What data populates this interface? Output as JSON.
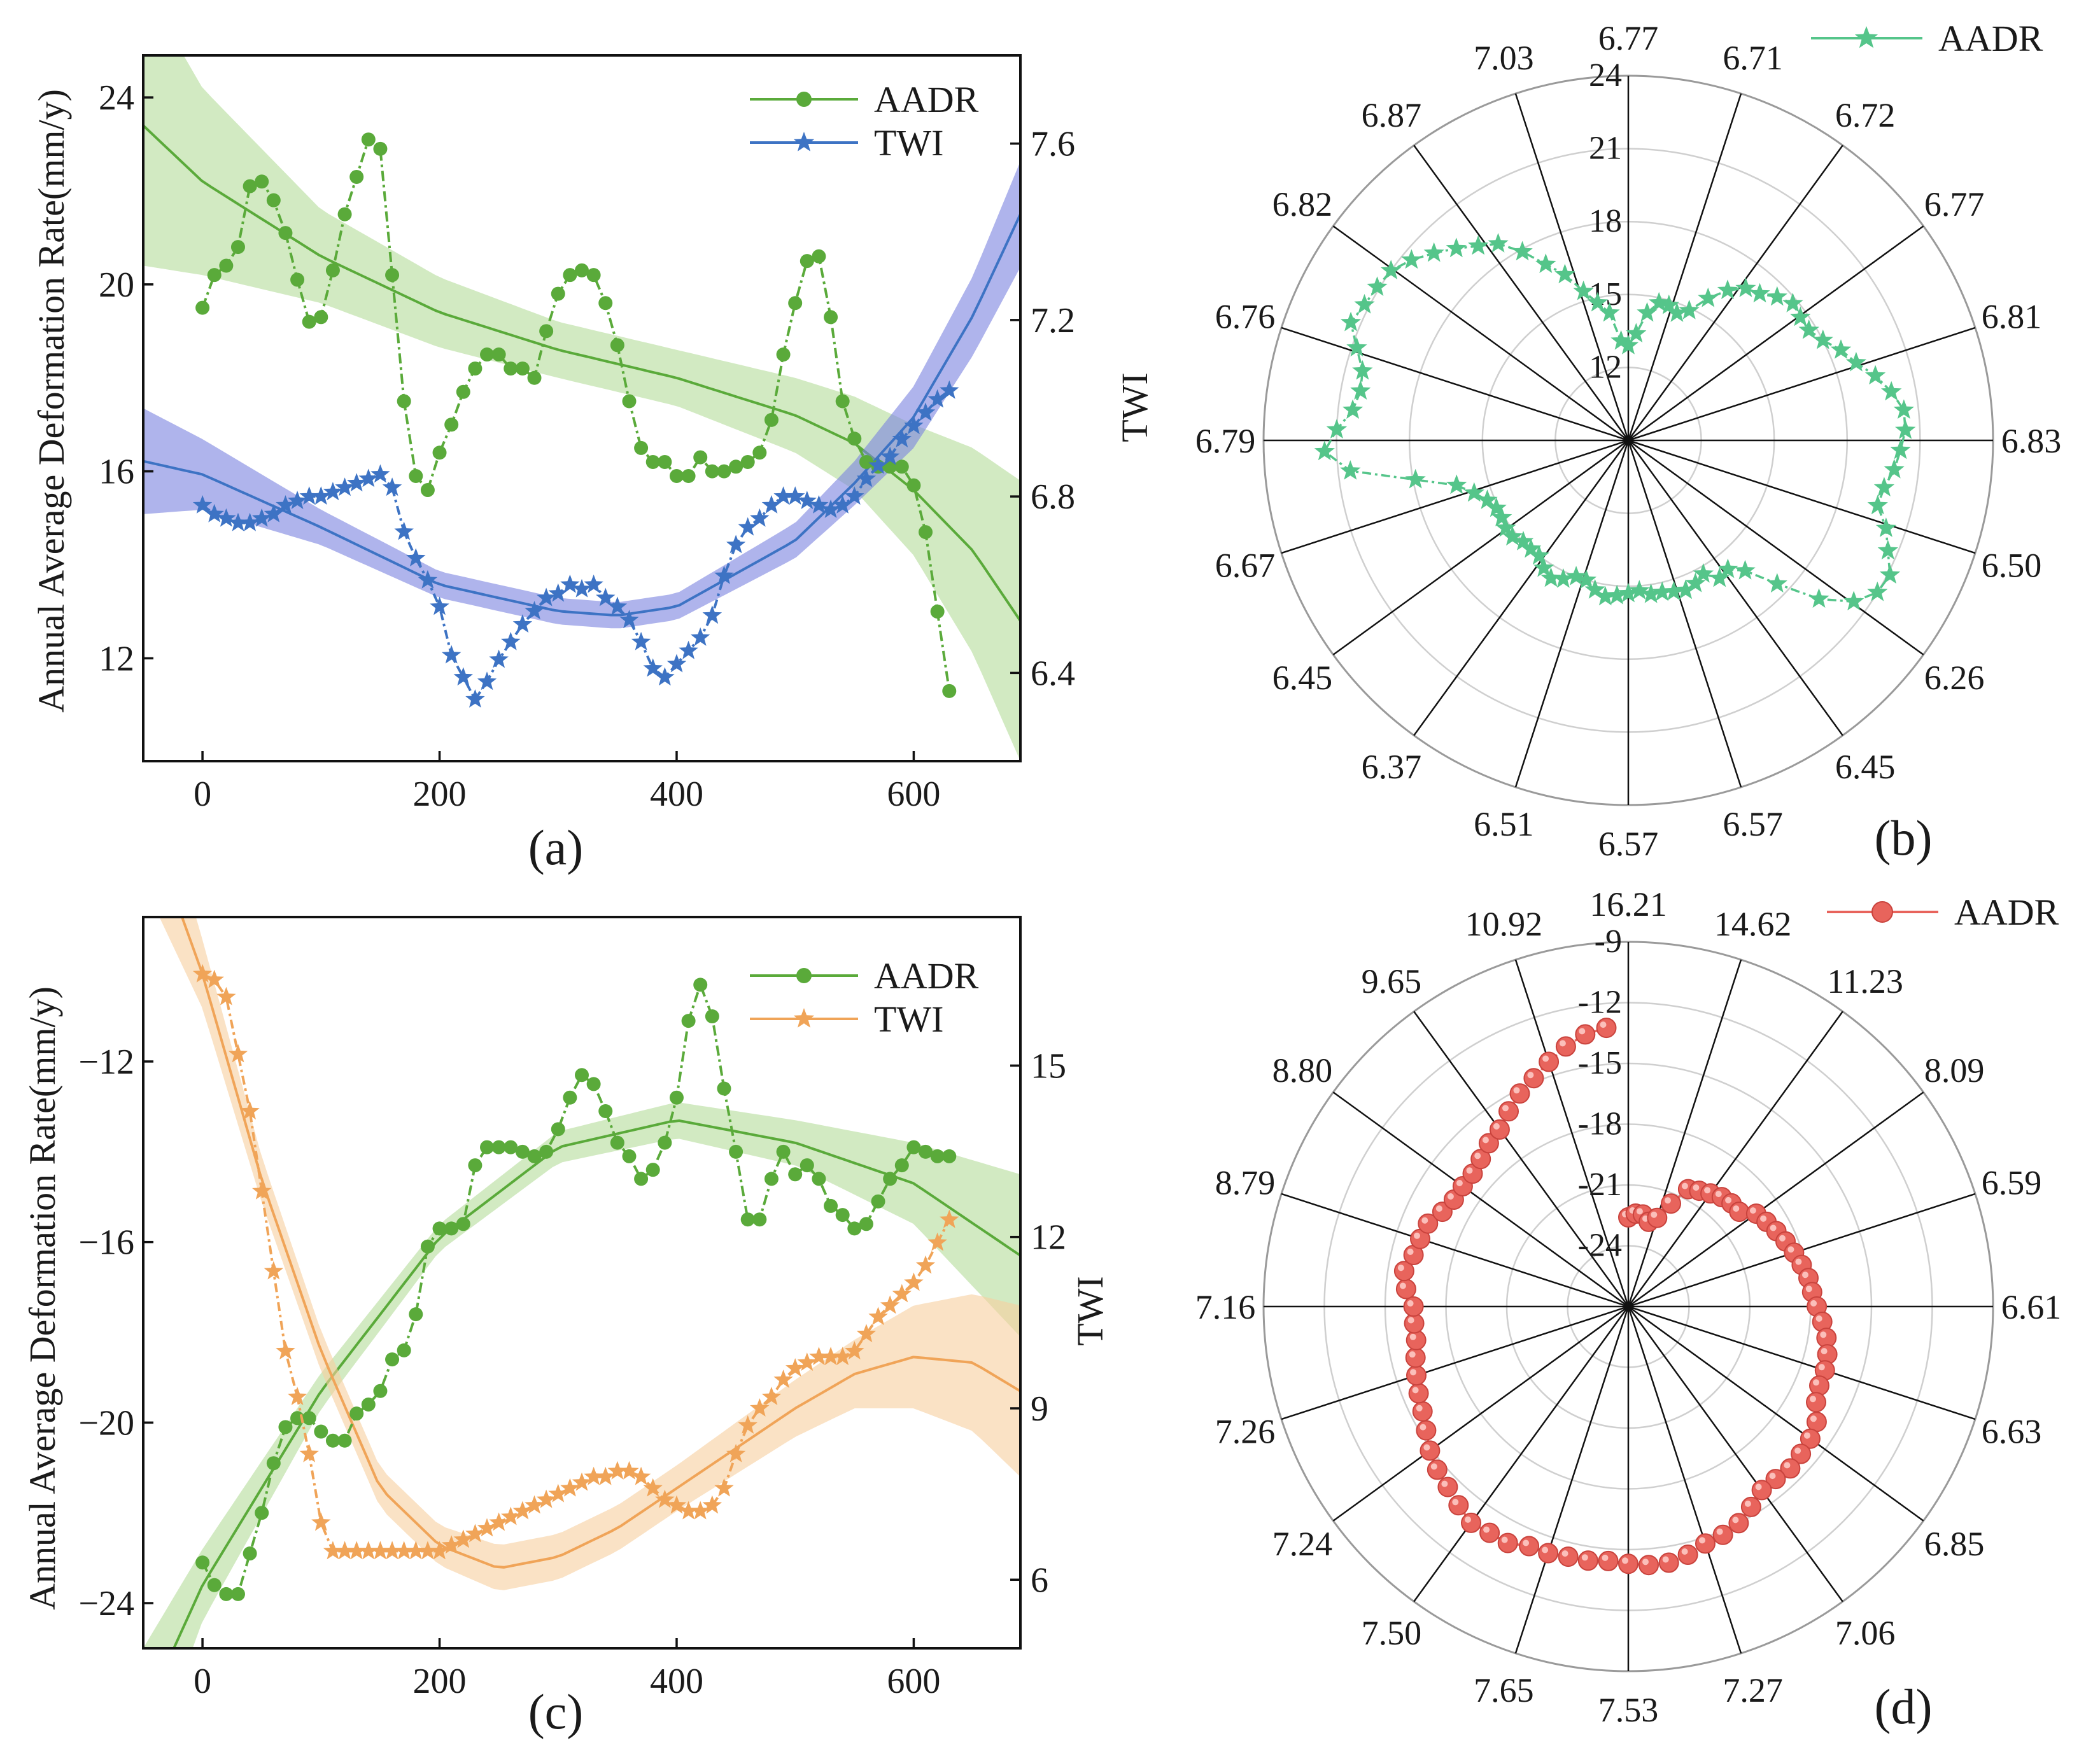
{
  "colors": {
    "green": "#5aaa3a",
    "green_band": "#b4dc9a",
    "blue": "#3d73c4",
    "blue_band": "#7a82df",
    "orange": "#f0a458",
    "orange_band": "#f7cf9f",
    "teal": "#55c58a",
    "red": "#e8645c"
  },
  "chart_data": [
    {
      "id": "a",
      "type": "line",
      "panel_label": "(a)",
      "title": "",
      "xlabel": "",
      "ylabel": "Annual Average Deformation Rate(mm/y)",
      "y2label": "TWI",
      "xlim": [
        -50,
        690
      ],
      "ylim": [
        9.8,
        24.9
      ],
      "y2lim": [
        6.2,
        7.8
      ],
      "xticks": [
        0,
        200,
        400,
        600
      ],
      "yticks": [
        12,
        16,
        20,
        24
      ],
      "y2ticks": [
        6.4,
        6.8,
        7.2,
        7.6
      ],
      "legend": {
        "position": "top-right",
        "entries": [
          "AADR",
          "TWI"
        ]
      },
      "series": [
        {
          "name": "AADR",
          "axis": "left",
          "marker": "circle",
          "color_key": "green",
          "x": [
            0,
            10,
            20,
            30,
            40,
            50,
            60,
            70,
            80,
            90,
            100,
            110,
            120,
            130,
            140,
            150,
            160,
            170,
            180,
            190,
            200,
            210,
            220,
            230,
            240,
            250,
            260,
            270,
            280,
            290,
            300,
            310,
            320,
            330,
            340,
            350,
            360,
            370,
            380,
            390,
            400,
            410,
            420,
            430,
            440,
            450,
            460,
            470,
            480,
            490,
            500,
            510,
            520,
            530,
            540,
            550,
            560,
            570,
            580,
            590,
            600,
            610,
            620,
            630
          ],
          "values": [
            19.5,
            20.2,
            20.4,
            20.8,
            22.1,
            22.2,
            21.8,
            21.1,
            20.1,
            19.2,
            19.3,
            20.3,
            21.5,
            22.3,
            23.1,
            22.9,
            20.2,
            17.5,
            15.9,
            15.6,
            16.4,
            17.0,
            17.7,
            18.2,
            18.5,
            18.5,
            18.2,
            18.2,
            18.0,
            19.0,
            19.8,
            20.2,
            20.3,
            20.2,
            19.6,
            18.7,
            17.5,
            16.5,
            16.2,
            16.2,
            15.9,
            15.9,
            16.3,
            16.0,
            16.0,
            16.1,
            16.2,
            16.4,
            17.1,
            18.5,
            19.6,
            20.5,
            20.6,
            19.3,
            17.5,
            16.7,
            16.2,
            16.1,
            16.1,
            16.1,
            15.7,
            14.7,
            13.0,
            11.3
          ]
        },
        {
          "name": "TWI",
          "axis": "right",
          "marker": "star",
          "color_key": "blue",
          "x": [
            0,
            10,
            20,
            30,
            40,
            50,
            60,
            70,
            80,
            90,
            100,
            110,
            120,
            130,
            140,
            150,
            160,
            170,
            180,
            190,
            200,
            210,
            220,
            230,
            240,
            250,
            260,
            270,
            280,
            290,
            300,
            310,
            320,
            330,
            340,
            350,
            360,
            370,
            380,
            390,
            400,
            410,
            420,
            430,
            440,
            450,
            460,
            470,
            480,
            490,
            500,
            510,
            520,
            530,
            540,
            550,
            560,
            570,
            580,
            590,
            600,
            610,
            620,
            630
          ],
          "values": [
            6.78,
            6.76,
            6.75,
            6.74,
            6.74,
            6.75,
            6.76,
            6.78,
            6.79,
            6.8,
            6.8,
            6.81,
            6.82,
            6.83,
            6.84,
            6.85,
            6.82,
            6.72,
            6.66,
            6.61,
            6.55,
            6.44,
            6.39,
            6.34,
            6.38,
            6.43,
            6.47,
            6.51,
            6.54,
            6.57,
            6.58,
            6.6,
            6.59,
            6.6,
            6.57,
            6.55,
            6.52,
            6.47,
            6.41,
            6.39,
            6.42,
            6.45,
            6.48,
            6.53,
            6.62,
            6.69,
            6.73,
            6.75,
            6.78,
            6.8,
            6.8,
            6.79,
            6.78,
            6.77,
            6.78,
            6.8,
            6.84,
            6.87,
            6.89,
            6.93,
            6.96,
            6.99,
            7.02,
            7.04
          ]
        }
      ],
      "fits": [
        {
          "axis": "left",
          "color_key": "green",
          "band_key": "green_band",
          "x": [
            -50,
            0,
            100,
            200,
            300,
            400,
            500,
            550,
            600,
            650,
            690
          ],
          "y": [
            23.4,
            22.2,
            20.6,
            19.4,
            18.6,
            18.0,
            17.2,
            16.6,
            15.6,
            14.3,
            12.8
          ],
          "band": [
            3.0,
            2.0,
            1.0,
            0.75,
            0.6,
            0.6,
            0.8,
            1.0,
            1.4,
            2.2,
            3.0
          ]
        },
        {
          "axis": "right",
          "color_key": "blue",
          "band_key": "blue_band",
          "x": [
            -50,
            0,
            100,
            200,
            300,
            350,
            400,
            500,
            550,
            600,
            650,
            690
          ],
          "y": [
            6.88,
            6.85,
            6.73,
            6.6,
            6.54,
            6.53,
            6.55,
            6.7,
            6.83,
            6.98,
            7.21,
            7.44
          ],
          "band": [
            0.12,
            0.08,
            0.04,
            0.03,
            0.03,
            0.03,
            0.03,
            0.04,
            0.05,
            0.07,
            0.09,
            0.12
          ]
        }
      ]
    },
    {
      "id": "b",
      "type": "polar",
      "panel_label": "(b)",
      "title": "",
      "rlim": [
        9,
        24
      ],
      "rticks": [
        12,
        15,
        18,
        21,
        24
      ],
      "legend": {
        "position": "top-right",
        "entries": [
          "AADR"
        ]
      },
      "spoke_labels": [
        "6.77",
        "6.71",
        "6.72",
        "6.77",
        "6.81",
        "6.83",
        "6.50",
        "6.26",
        "6.45",
        "6.57",
        "6.57",
        "6.51",
        "6.37",
        "6.45",
        "6.67",
        "6.79",
        "6.76",
        "6.82",
        "6.87",
        "7.03"
      ],
      "series": [
        {
          "name": "AADR",
          "marker": "star",
          "color_key": "teal",
          "values": [
            12.9,
            13.4,
            14.3,
            14.8,
            14.8,
            14.6,
            14.9,
            15.7,
            16.4,
            16.9,
            17.1,
            17.5,
            17.8,
            17.7,
            17.7,
            18.0,
            18.5,
            18.9,
            19.5,
            20.0,
            20.4,
            20.4,
            20.2,
            20.0,
            19.7,
            19.6,
            20.2,
            20.6,
            21.1,
            21.0,
            20.4,
            19.2,
            17.5,
            16.2,
            15.7,
            15.8,
            15.3,
            15.5,
            15.6,
            15.5,
            15.4,
            15.4,
            15.2,
            15.3,
            15.4,
            15.5,
            15.3,
            15.0,
            15.0,
            15.3,
            15.5,
            15.3,
            15.0,
            15.0,
            15.0,
            15.2,
            15.2,
            15.1,
            15.1,
            15.3,
            15.7,
            16.3,
            17.9,
            20.5,
            21.5,
            21.0,
            20.4,
            20.2,
            20.3,
            20.8,
            21.4,
            21.2,
            21.1,
            21.0,
            20.6,
            20.1,
            19.6,
            19.1,
            18.7,
            17.9,
            17.0,
            16.3,
            15.4,
            14.8,
            14.3,
            13.1
          ]
        }
      ]
    },
    {
      "id": "c",
      "type": "line",
      "panel_label": "(c)",
      "title": "",
      "xlabel": "",
      "ylabel": "Annual Average Deformation Rate(mm/y)",
      "y2label": "TWI",
      "xlim": [
        -50,
        690
      ],
      "ylim": [
        -25.0,
        -8.8
      ],
      "y2lim": [
        4.8,
        17.6
      ],
      "xticks": [
        0,
        200,
        400,
        600
      ],
      "yticks": [
        -24,
        -20,
        -16,
        -12
      ],
      "y2ticks": [
        6,
        9,
        12,
        15
      ],
      "legend": {
        "position": "top-right",
        "entries": [
          "AADR",
          "TWI"
        ]
      },
      "series": [
        {
          "name": "AADR",
          "axis": "left",
          "marker": "circle",
          "color_key": "green",
          "x": [
            0,
            10,
            20,
            30,
            40,
            50,
            60,
            70,
            80,
            90,
            100,
            110,
            120,
            130,
            140,
            150,
            160,
            170,
            180,
            190,
            200,
            210,
            220,
            230,
            240,
            250,
            260,
            270,
            280,
            290,
            300,
            310,
            320,
            330,
            340,
            350,
            360,
            370,
            380,
            390,
            400,
            410,
            420,
            430,
            440,
            450,
            460,
            470,
            480,
            490,
            500,
            510,
            520,
            530,
            540,
            550,
            560,
            570,
            580,
            590,
            600,
            610,
            620,
            630
          ],
          "values": [
            -23.1,
            -23.6,
            -23.8,
            -23.8,
            -22.9,
            -22.0,
            -20.9,
            -20.1,
            -19.9,
            -19.9,
            -20.2,
            -20.4,
            -20.4,
            -19.8,
            -19.6,
            -19.3,
            -18.6,
            -18.4,
            -17.6,
            -16.1,
            -15.7,
            -15.7,
            -15.6,
            -14.3,
            -13.9,
            -13.9,
            -13.9,
            -14.0,
            -14.1,
            -14.0,
            -13.5,
            -12.8,
            -12.3,
            -12.5,
            -13.1,
            -13.8,
            -14.1,
            -14.6,
            -14.4,
            -13.8,
            -12.8,
            -11.1,
            -10.3,
            -11.0,
            -12.6,
            -14.0,
            -15.5,
            -15.5,
            -14.6,
            -14.0,
            -14.5,
            -14.3,
            -14.6,
            -15.2,
            -15.4,
            -15.7,
            -15.6,
            -15.1,
            -14.6,
            -14.3,
            -13.9,
            -14.0,
            -14.1,
            -14.1
          ]
        },
        {
          "name": "TWI",
          "axis": "right",
          "marker": "star",
          "color_key": "orange",
          "x": [
            0,
            10,
            20,
            30,
            40,
            50,
            60,
            70,
            80,
            90,
            100,
            110,
            120,
            130,
            140,
            150,
            160,
            170,
            180,
            190,
            200,
            210,
            220,
            230,
            240,
            250,
            260,
            270,
            280,
            290,
            300,
            310,
            320,
            330,
            340,
            350,
            360,
            370,
            380,
            390,
            400,
            410,
            420,
            430,
            440,
            450,
            460,
            470,
            480,
            490,
            500,
            510,
            520,
            530,
            540,
            550,
            560,
            570,
            580,
            590,
            600,
            610,
            620,
            630
          ],
          "values": [
            16.6,
            16.5,
            16.2,
            15.2,
            14.2,
            12.8,
            11.4,
            10.0,
            9.2,
            8.2,
            7.0,
            6.5,
            6.5,
            6.5,
            6.5,
            6.5,
            6.5,
            6.5,
            6.5,
            6.5,
            6.5,
            6.6,
            6.7,
            6.8,
            6.9,
            7.0,
            7.1,
            7.2,
            7.3,
            7.4,
            7.5,
            7.6,
            7.7,
            7.8,
            7.8,
            7.9,
            7.9,
            7.8,
            7.6,
            7.4,
            7.3,
            7.2,
            7.2,
            7.3,
            7.6,
            8.2,
            8.7,
            9.0,
            9.2,
            9.5,
            9.7,
            9.8,
            9.9,
            9.9,
            9.9,
            10.0,
            10.3,
            10.6,
            10.8,
            11.0,
            11.2,
            11.5,
            11.9,
            12.3
          ]
        }
      ],
      "fits": [
        {
          "axis": "left",
          "color_key": "green",
          "band_key": "green_band",
          "x": [
            -50,
            0,
            100,
            200,
            300,
            400,
            500,
            600,
            690
          ],
          "y": [
            -26.5,
            -23.6,
            -19.3,
            -15.9,
            -13.9,
            -13.3,
            -13.8,
            -14.7,
            -16.3
          ],
          "band": [
            1.5,
            0.8,
            0.4,
            0.3,
            0.35,
            0.4,
            0.5,
            0.9,
            1.8
          ]
        },
        {
          "axis": "right",
          "color_key": "orange",
          "band_key": "orange_band",
          "x": [
            -50,
            0,
            50,
            100,
            150,
            200,
            250,
            300,
            350,
            400,
            450,
            500,
            550,
            600,
            650,
            690
          ],
          "y": [
            19.5,
            16.6,
            13.0,
            10.0,
            7.6,
            6.6,
            6.2,
            6.4,
            6.9,
            7.6,
            8.3,
            9.0,
            9.6,
            9.9,
            9.8,
            9.3
          ],
          "band": [
            1.3,
            0.6,
            0.4,
            0.35,
            0.35,
            0.35,
            0.4,
            0.4,
            0.4,
            0.4,
            0.45,
            0.5,
            0.6,
            0.9,
            1.2,
            1.5
          ]
        }
      ]
    },
    {
      "id": "d",
      "type": "polar",
      "panel_label": "(d)",
      "title": "",
      "rlim": [
        -27,
        -9
      ],
      "rticks": [
        -24,
        -21,
        -18,
        -15,
        -12,
        -9
      ],
      "legend": {
        "position": "top-right",
        "entries": [
          "AADR"
        ]
      },
      "spoke_labels": [
        "16.21",
        "14.62",
        "11.23",
        "8.09",
        "6.59",
        "6.61",
        "6.63",
        "6.85",
        "7.06",
        "7.27",
        "7.53",
        "7.65",
        "7.50",
        "7.24",
        "7.26",
        "7.16",
        "8.79",
        "8.80",
        "9.65",
        "10.92"
      ],
      "series": [
        {
          "name": "AADR",
          "marker": "circle",
          "color_key": "red",
          "values": [
            -22.6,
            -22.4,
            -22.4,
            -22.7,
            -22.4,
            -21.5,
            -20.5,
            -20.3,
            -20.1,
            -19.9,
            -19.8,
            -19.8,
            -19.2,
            -19.0,
            -18.8,
            -18.6,
            -18.4,
            -18.2,
            -18.0,
            -17.9,
            -17.7,
            -17.4,
            -17.1,
            -16.9,
            -16.8,
            -16.8,
            -16.6,
            -16.1,
            -15.9,
            -15.8,
            -15.7,
            -15.8,
            -15.8,
            -15.4,
            -15.0,
            -14.8,
            -14.7,
            -14.4,
            -14.2,
            -14.2,
            -14.3,
            -14.4,
            -14.3,
            -14.3,
            -14.2,
            -14.2,
            -13.9,
            -13.9,
            -13.8,
            -14.1,
            -14.4,
            -14.6,
            -14.9,
            -15.3,
            -15.6,
            -15.8,
            -16.0,
            -16.2,
            -16.4,
            -16.4,
            -16.4,
            -16.0,
            -15.8,
            -16.1,
            -16.2,
            -16.3,
            -16.7,
            -16.9,
            -16.9,
            -16.9,
            -16.7,
            -16.4,
            -16.2,
            -15.7,
            -15.2,
            -14.8,
            -14.3,
            -13.8,
            -13.4,
            -13.2
          ]
        }
      ]
    }
  ]
}
